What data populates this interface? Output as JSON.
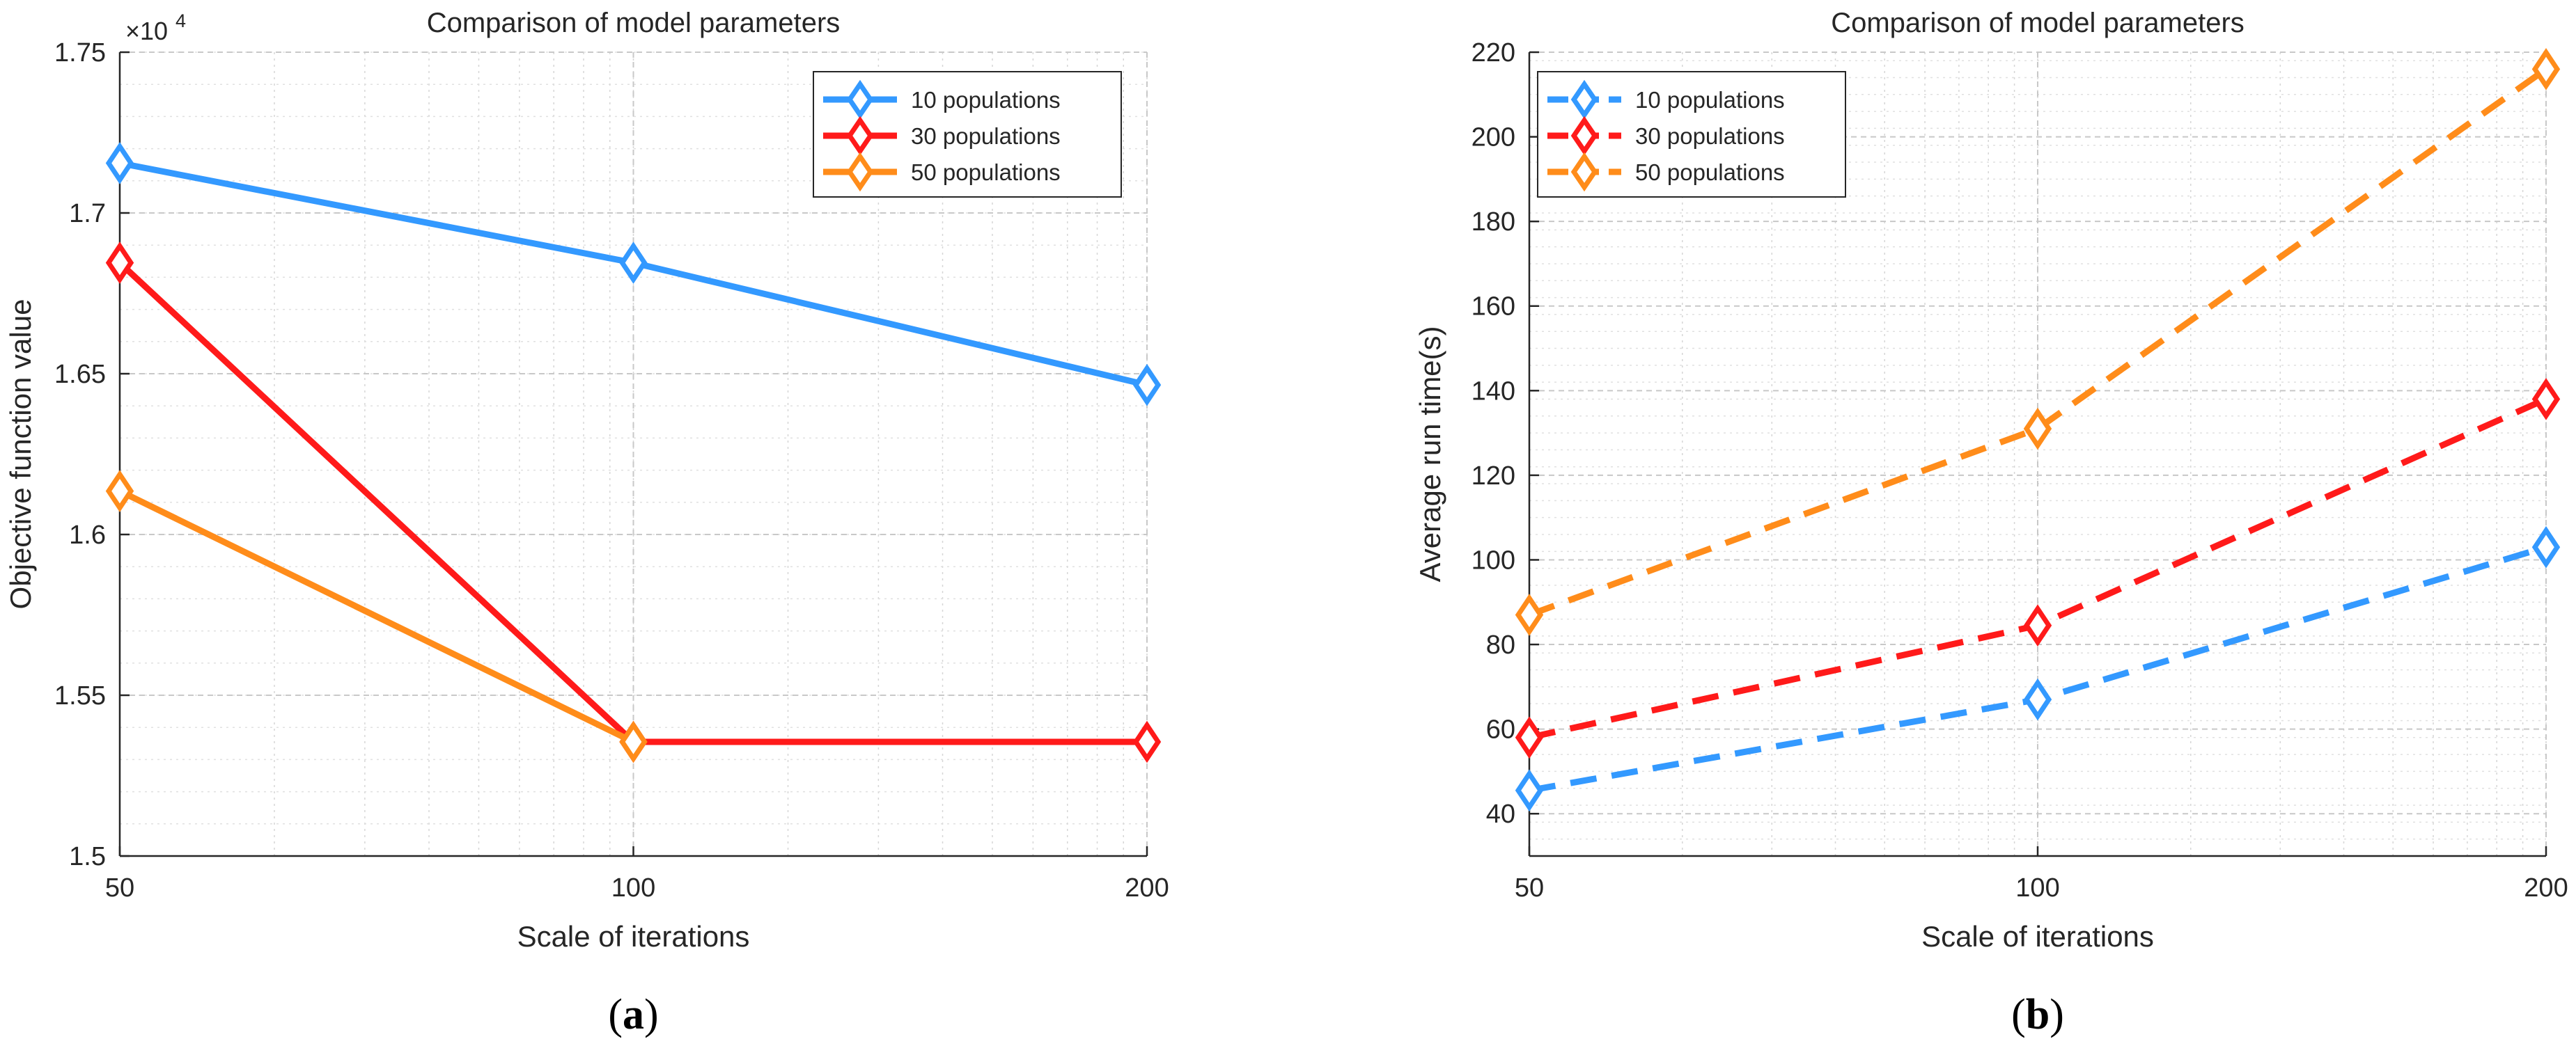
{
  "chart_data": [
    {
      "type": "line",
      "panel_label": "(a)",
      "panel_letter": "a",
      "title": "Comparison of model parameters",
      "xlabel": "Scale of iterations",
      "ylabel": "Objective function value",
      "y_exponent_label": "×10",
      "y_exponent": "4",
      "categories": [
        "50",
        "100",
        "200"
      ],
      "yticks": [
        1.5,
        1.55,
        1.6,
        1.65,
        1.7,
        1.75
      ],
      "ytick_labels": [
        "1.5",
        "1.55",
        "1.6",
        "1.65",
        "1.7",
        "1.75"
      ],
      "ylim": [
        1.5,
        1.75
      ],
      "grid": true,
      "minor_grid": true,
      "legend_position": "top-right",
      "line_style": "solid",
      "marker": "diamond",
      "series": [
        {
          "name": "10 populations",
          "color": "#3399FF",
          "values": [
            1.7155,
            1.6845,
            1.6465
          ]
        },
        {
          "name": "30 populations",
          "color": "#FF1A1A",
          "values": [
            1.6845,
            1.5355,
            1.5355
          ]
        },
        {
          "name": "50 populations",
          "color": "#FF8C1A",
          "values": [
            1.6135,
            1.5355,
            null
          ]
        }
      ]
    },
    {
      "type": "line",
      "panel_label": "(b)",
      "panel_letter": "b",
      "title": "Comparison of model parameters",
      "xlabel": "Scale of iterations",
      "ylabel": "Average run time(s)",
      "categories": [
        "50",
        "100",
        "200"
      ],
      "yticks": [
        40,
        60,
        80,
        100,
        120,
        140,
        160,
        180,
        200,
        220
      ],
      "ytick_labels": [
        "40",
        "60",
        "80",
        "100",
        "120",
        "140",
        "160",
        "180",
        "200",
        "220"
      ],
      "ylim": [
        30,
        220
      ],
      "grid": true,
      "minor_grid": true,
      "legend_position": "top-left",
      "line_style": "dashed",
      "marker": "diamond",
      "series": [
        {
          "name": "10 populations",
          "color": "#3399FF",
          "values": [
            45.5,
            67,
            103
          ]
        },
        {
          "name": "30 populations",
          "color": "#FF1A1A",
          "values": [
            58,
            84.5,
            138
          ]
        },
        {
          "name": "50 populations",
          "color": "#FF8C1A",
          "values": [
            87,
            131,
            216
          ]
        }
      ]
    }
  ]
}
